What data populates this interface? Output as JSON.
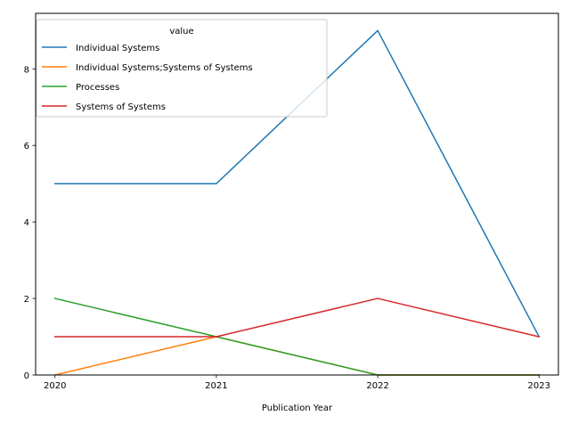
{
  "chart_data": {
    "type": "line",
    "title": "",
    "xlabel": "Publication Year",
    "ylabel": "",
    "categories": [
      "2020",
      "2021",
      "2022",
      "2023"
    ],
    "x": [
      2020,
      2021,
      2022,
      2023
    ],
    "xlim": [
      2019.88,
      2023.12
    ],
    "ylim": [
      0,
      9.45
    ],
    "yticks": [
      0,
      2,
      4,
      6,
      8
    ],
    "grid": false,
    "legend": {
      "title": "value",
      "placement": "top-left"
    },
    "series": [
      {
        "name": "Individual Systems",
        "color": "#1f77b4",
        "values": [
          5,
          5,
          9,
          1
        ]
      },
      {
        "name": "Individual Systems;Systems of Systems",
        "color": "#ff7f0e",
        "values": [
          0,
          1,
          0,
          0
        ]
      },
      {
        "name": "Processes",
        "color": "#2ca02c",
        "values": [
          2,
          1,
          0,
          0
        ]
      },
      {
        "name": "Systems of Systems",
        "color": "#d62728",
        "values": [
          1,
          1,
          2,
          1
        ]
      }
    ]
  }
}
